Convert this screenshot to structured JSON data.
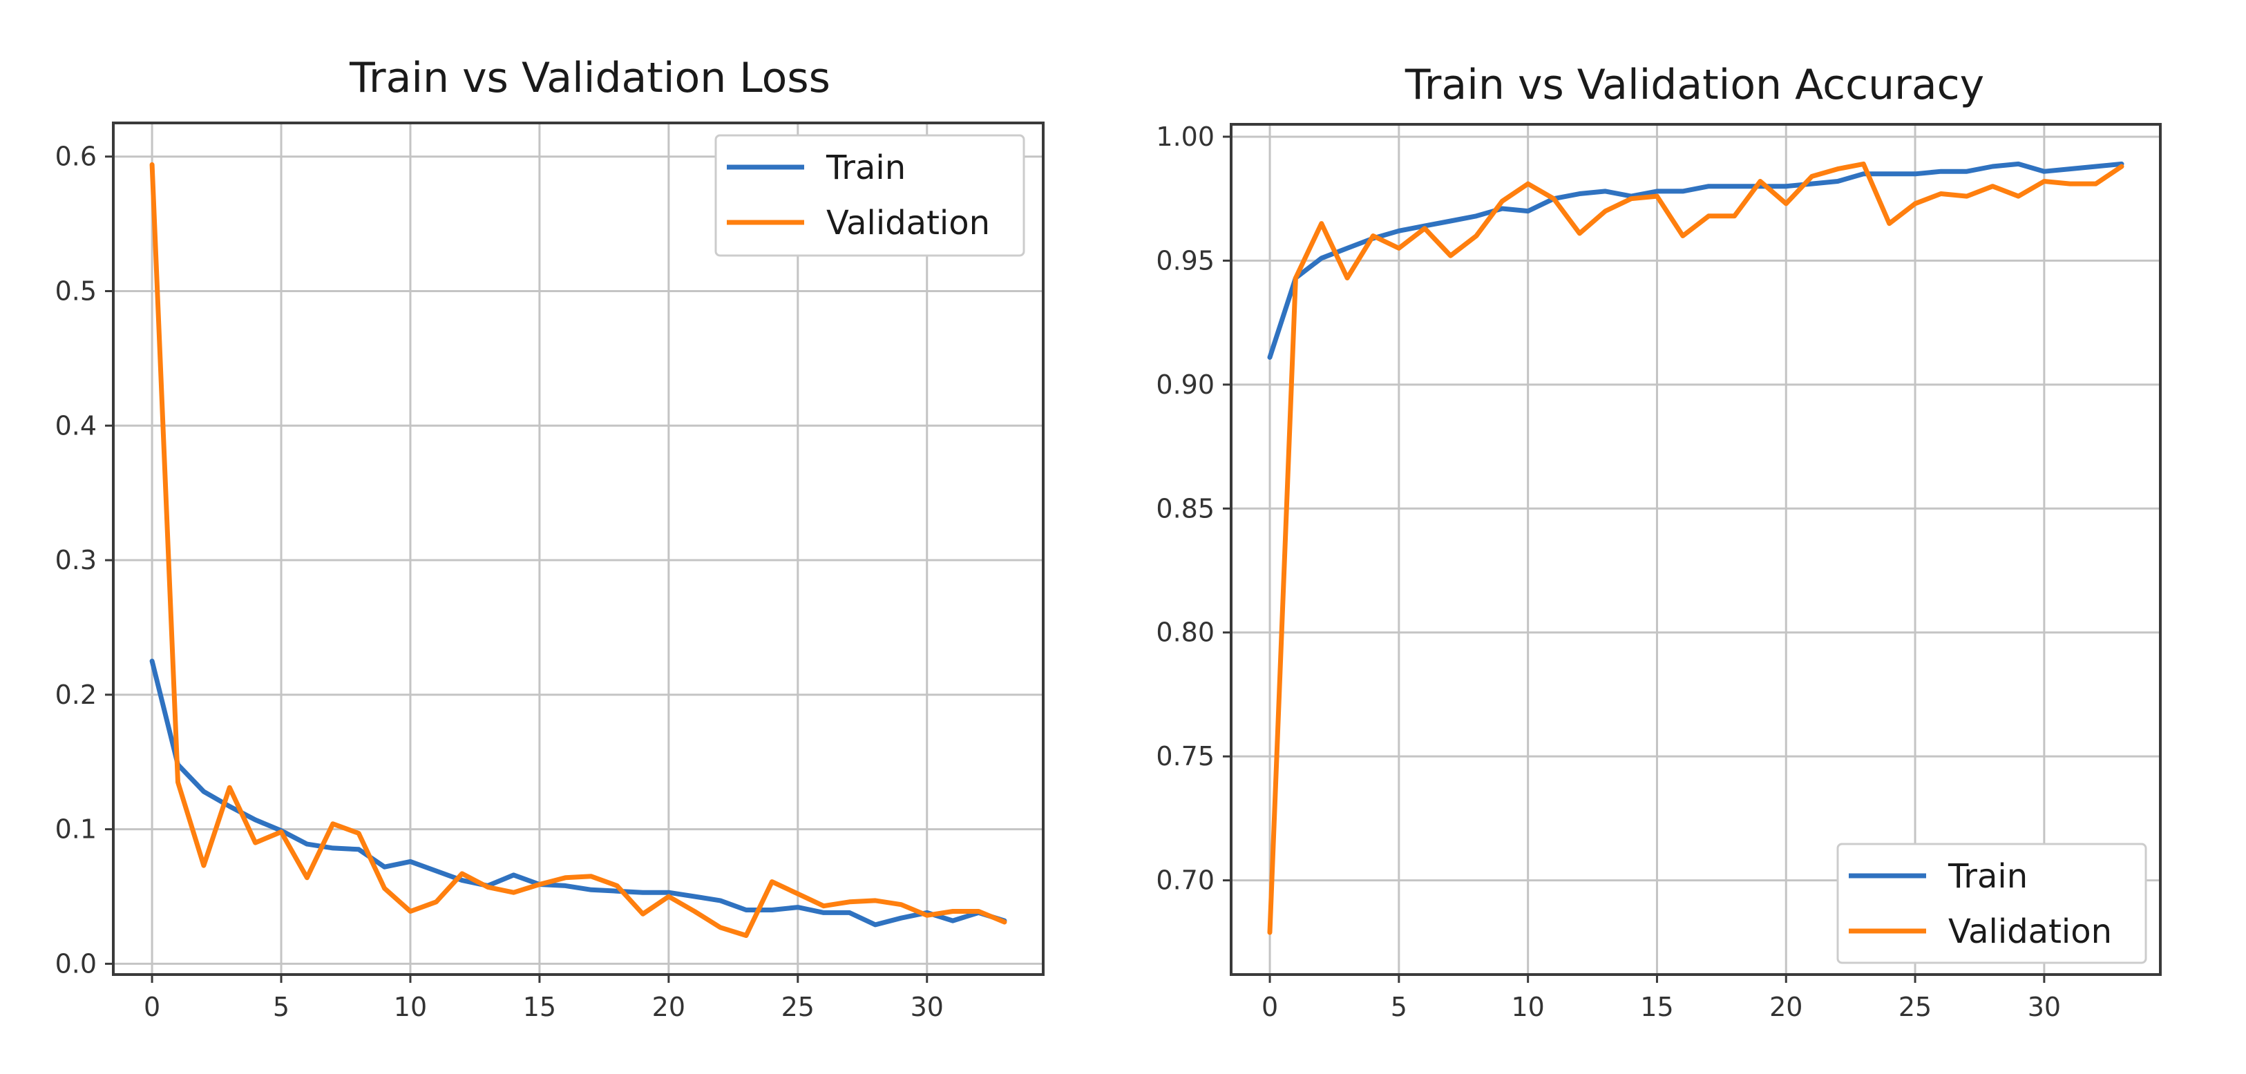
{
  "colors": {
    "train": "#2f72c0",
    "validation": "#ff7f0e"
  },
  "chart_data": [
    {
      "type": "line",
      "title": "Train vs Validation Loss",
      "xlabel": "",
      "ylabel": "",
      "xlim": [
        -1.5,
        34.5
      ],
      "ylim": [
        -0.008,
        0.625
      ],
      "xticks": [
        0,
        5,
        10,
        15,
        20,
        25,
        30
      ],
      "xtick_labels": [
        "0",
        "5",
        "10",
        "15",
        "20",
        "25",
        "30"
      ],
      "yticks": [
        0.0,
        0.1,
        0.2,
        0.3,
        0.4,
        0.5,
        0.6
      ],
      "ytick_labels": [
        "0.0",
        "0.1",
        "0.2",
        "0.3",
        "0.4",
        "0.5",
        "0.6"
      ],
      "grid": true,
      "legend": {
        "position": "upper-right",
        "entries": [
          "Train",
          "Validation"
        ]
      },
      "x": [
        0,
        1,
        2,
        3,
        4,
        5,
        6,
        7,
        8,
        9,
        10,
        11,
        12,
        13,
        14,
        15,
        16,
        17,
        18,
        19,
        20,
        21,
        22,
        23,
        24,
        25,
        26,
        27,
        28,
        29,
        30,
        31,
        32,
        33
      ],
      "series": [
        {
          "name": "Train",
          "color": "#2f72c0",
          "values": [
            0.225,
            0.148,
            0.128,
            0.117,
            0.107,
            0.099,
            0.089,
            0.086,
            0.085,
            0.072,
            0.076,
            0.069,
            0.062,
            0.058,
            0.066,
            0.059,
            0.058,
            0.055,
            0.054,
            0.053,
            0.053,
            0.05,
            0.047,
            0.04,
            0.04,
            0.042,
            0.038,
            0.038,
            0.029,
            0.034,
            0.038,
            0.032,
            0.038,
            0.032
          ]
        },
        {
          "name": "Validation",
          "color": "#ff7f0e",
          "values": [
            0.594,
            0.135,
            0.073,
            0.131,
            0.09,
            0.098,
            0.064,
            0.104,
            0.097,
            0.056,
            0.039,
            0.046,
            0.067,
            0.057,
            0.053,
            0.059,
            0.064,
            0.065,
            0.058,
            0.037,
            0.05,
            0.039,
            0.027,
            0.021,
            0.061,
            0.052,
            0.043,
            0.046,
            0.047,
            0.044,
            0.036,
            0.039,
            0.039,
            0.031
          ]
        }
      ]
    },
    {
      "type": "line",
      "title": "Train vs Validation Accuracy",
      "xlabel": "",
      "ylabel": "",
      "xlim": [
        -1.5,
        34.5
      ],
      "ylim": [
        0.662,
        1.005
      ],
      "xticks": [
        0,
        5,
        10,
        15,
        20,
        25,
        30
      ],
      "xtick_labels": [
        "0",
        "5",
        "10",
        "15",
        "20",
        "25",
        "30"
      ],
      "yticks": [
        0.7,
        0.75,
        0.8,
        0.85,
        0.9,
        0.95,
        1.0
      ],
      "ytick_labels": [
        "0.70",
        "0.75",
        "0.80",
        "0.85",
        "0.90",
        "0.95",
        "1.00"
      ],
      "grid": true,
      "legend": {
        "position": "lower-right",
        "entries": [
          "Train",
          "Validation"
        ]
      },
      "x": [
        0,
        1,
        2,
        3,
        4,
        5,
        6,
        7,
        8,
        9,
        10,
        11,
        12,
        13,
        14,
        15,
        16,
        17,
        18,
        19,
        20,
        21,
        22,
        23,
        24,
        25,
        26,
        27,
        28,
        29,
        30,
        31,
        32,
        33
      ],
      "series": [
        {
          "name": "Train",
          "color": "#2f72c0",
          "values": [
            0.911,
            0.943,
            0.951,
            0.955,
            0.959,
            0.962,
            0.964,
            0.966,
            0.968,
            0.971,
            0.97,
            0.975,
            0.977,
            0.978,
            0.976,
            0.978,
            0.978,
            0.98,
            0.98,
            0.98,
            0.98,
            0.981,
            0.982,
            0.985,
            0.985,
            0.985,
            0.986,
            0.986,
            0.988,
            0.989,
            0.986,
            0.987,
            0.988,
            0.989
          ]
        },
        {
          "name": "Validation",
          "color": "#ff7f0e",
          "values": [
            0.679,
            0.943,
            0.965,
            0.943,
            0.96,
            0.955,
            0.963,
            0.952,
            0.96,
            0.974,
            0.981,
            0.975,
            0.961,
            0.97,
            0.975,
            0.976,
            0.96,
            0.968,
            0.968,
            0.982,
            0.973,
            0.984,
            0.987,
            0.989,
            0.965,
            0.973,
            0.977,
            0.976,
            0.98,
            0.976,
            0.982,
            0.981,
            0.981,
            0.988
          ]
        }
      ]
    }
  ]
}
